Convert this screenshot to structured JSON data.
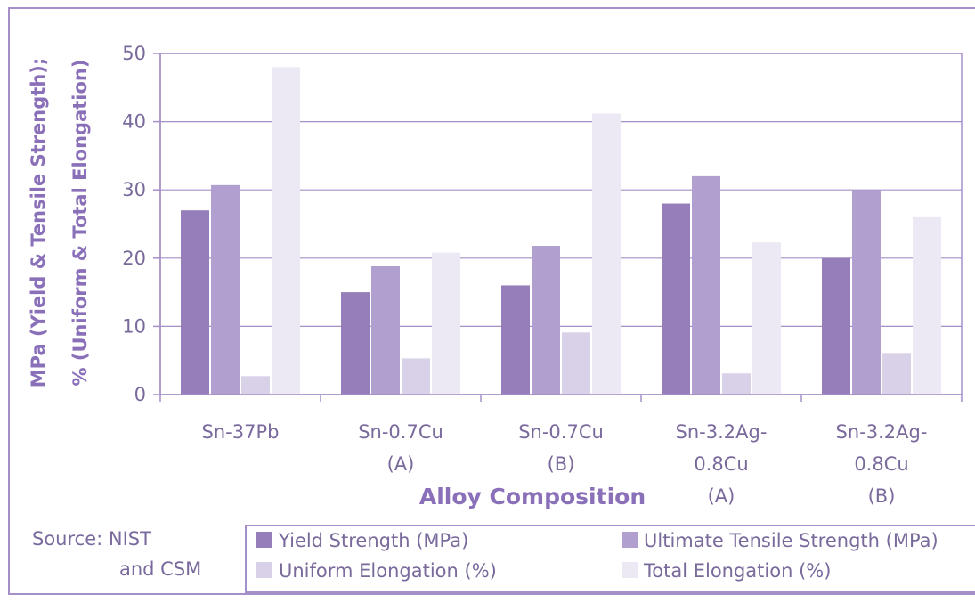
{
  "chart_data": {
    "type": "bar",
    "categories": [
      [
        "Sn-37Pb"
      ],
      [
        "Sn-0.7Cu",
        "(A)"
      ],
      [
        "Sn-0.7Cu",
        "(B)"
      ],
      [
        "Sn-3.2Ag-",
        "0.8Cu",
        "(A)"
      ],
      [
        "Sn-3.2Ag-",
        "0.8Cu",
        "(B)"
      ]
    ],
    "series": [
      {
        "name": "Yield Strength (MPa)",
        "color": "#967ebb",
        "values": [
          27,
          15,
          16,
          28,
          20
        ]
      },
      {
        "name": "Ultimate Tensile Strength (MPa)",
        "color": "#b09fcf",
        "values": [
          30.7,
          18.8,
          21.8,
          32,
          30
        ]
      },
      {
        "name": "Uniform Elongation (%)",
        "color": "#d9d1e8",
        "values": [
          2.7,
          5.3,
          9.1,
          3.1,
          6.1
        ]
      },
      {
        "name": "Total Elongation (%)",
        "color": "#ece8f4",
        "values": [
          48,
          20.8,
          41.2,
          22.3,
          26
        ]
      }
    ],
    "xlabel": "Alloy Composition",
    "ylabel_line1": "MPa (Yield & Tensile Strength);",
    "ylabel_line2": "% (Uniform & Total Elongation)",
    "ylim": [
      0,
      50
    ],
    "yticks": [
      0,
      10,
      20,
      30,
      40,
      50
    ],
    "grid": true,
    "legend_position": "bottom"
  },
  "source_line1": "Source: NIST",
  "source_line2": "and CSM"
}
